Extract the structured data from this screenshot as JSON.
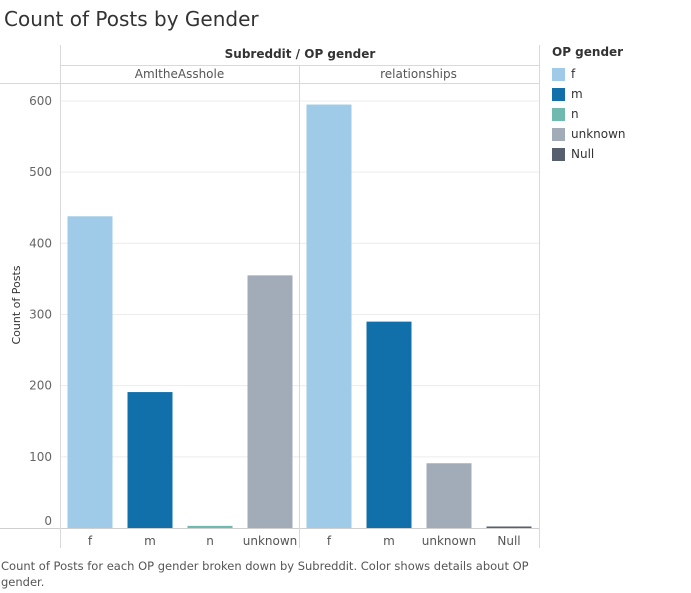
{
  "title": "Count of Posts by Gender",
  "caption": "Count of Posts for each OP gender broken down by Subreddit.  Color shows details about OP gender.",
  "legend": {
    "title": "OP gender",
    "items": [
      {
        "label": "f",
        "color": "#a0cbe8"
      },
      {
        "label": "m",
        "color": "#1170aa"
      },
      {
        "label": "n",
        "color": "#6fb9ae"
      },
      {
        "label": "unknown",
        "color": "#a2acb8"
      },
      {
        "label": "Null",
        "color": "#555f6d"
      }
    ]
  },
  "chart_data": {
    "type": "bar",
    "header": "Subreddit  /  OP gender",
    "ylabel": "Count of Posts",
    "ylim": [
      0,
      600
    ],
    "yticks": [
      0,
      100,
      200,
      300,
      400,
      500,
      600
    ],
    "grid": true,
    "legend_position": "right",
    "panels": [
      {
        "name": "AmItheAsshole",
        "categories": [
          "f",
          "m",
          "n",
          "unknown"
        ],
        "values": [
          438,
          191,
          3,
          355
        ]
      },
      {
        "name": "relationships",
        "categories": [
          "f",
          "m",
          "unknown",
          "Null"
        ],
        "values": [
          595,
          290,
          91,
          1
        ]
      }
    ]
  }
}
